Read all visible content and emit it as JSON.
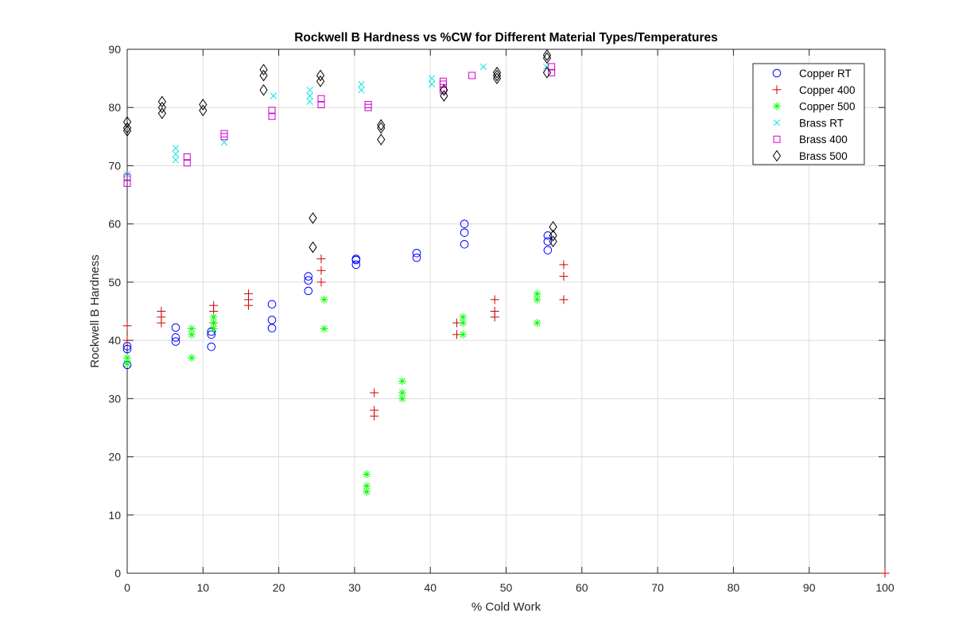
{
  "chart_data": {
    "type": "scatter",
    "title": "Rockwell B Hardness vs %CW for Different Material Types/Temperatures",
    "xlabel": "% Cold Work",
    "ylabel": "Rockwell B Hardness",
    "xlim": [
      0,
      100
    ],
    "ylim": [
      0,
      90
    ],
    "xticks": [
      0,
      10,
      20,
      30,
      40,
      50,
      60,
      70,
      80,
      90,
      100
    ],
    "yticks": [
      0,
      10,
      20,
      30,
      40,
      50,
      60,
      70,
      80,
      90
    ],
    "grid": true,
    "legend_position": "top-right",
    "series": [
      {
        "name": "Copper RT",
        "marker": "circle",
        "color": "#0000ff",
        "points": [
          [
            0,
            35.8
          ],
          [
            0,
            38.5
          ],
          [
            0,
            39
          ],
          [
            6.4,
            39.8
          ],
          [
            6.4,
            40.5
          ],
          [
            6.4,
            42.2
          ],
          [
            11.1,
            38.9
          ],
          [
            11.1,
            41
          ],
          [
            11.1,
            41.5
          ],
          [
            19.1,
            42.1
          ],
          [
            19.1,
            43.5
          ],
          [
            19.1,
            46.2
          ],
          [
            23.9,
            48.5
          ],
          [
            23.9,
            50.3
          ],
          [
            23.9,
            51
          ],
          [
            30.2,
            53
          ],
          [
            30.2,
            53.8
          ],
          [
            30.2,
            54
          ],
          [
            38.2,
            54.2
          ],
          [
            38.2,
            55
          ],
          [
            44.5,
            56.5
          ],
          [
            44.5,
            58.5
          ],
          [
            44.5,
            60
          ],
          [
            55.5,
            55.5
          ],
          [
            55.5,
            57
          ],
          [
            55.5,
            58
          ]
        ]
      },
      {
        "name": "Copper 400",
        "marker": "plus",
        "color": "#cc0000",
        "points": [
          [
            0,
            40
          ],
          [
            0,
            42.5
          ],
          [
            4.5,
            43
          ],
          [
            4.5,
            44
          ],
          [
            4.5,
            45
          ],
          [
            11.4,
            43
          ],
          [
            11.4,
            45
          ],
          [
            11.4,
            46
          ],
          [
            16,
            46
          ],
          [
            16,
            47
          ],
          [
            16,
            48
          ],
          [
            25.6,
            50
          ],
          [
            25.6,
            52
          ],
          [
            25.6,
            54
          ],
          [
            32.6,
            27
          ],
          [
            32.6,
            28
          ],
          [
            32.6,
            31
          ],
          [
            43.5,
            41
          ],
          [
            43.5,
            43
          ],
          [
            48.5,
            44
          ],
          [
            48.5,
            45
          ],
          [
            48.5,
            47
          ],
          [
            57.6,
            47
          ],
          [
            57.6,
            51
          ],
          [
            57.6,
            53
          ],
          [
            100,
            0
          ]
        ]
      },
      {
        "name": "Copper 500",
        "marker": "asterisk",
        "color": "#00ff00",
        "points": [
          [
            0,
            36
          ],
          [
            0,
            37
          ],
          [
            8.5,
            37
          ],
          [
            8.5,
            41
          ],
          [
            8.5,
            42
          ],
          [
            11.4,
            42
          ],
          [
            11.4,
            43
          ],
          [
            11.4,
            44
          ],
          [
            26,
            42
          ],
          [
            26,
            47
          ],
          [
            31.6,
            14
          ],
          [
            31.6,
            15
          ],
          [
            31.6,
            17
          ],
          [
            36.3,
            30
          ],
          [
            36.3,
            31
          ],
          [
            36.3,
            33
          ],
          [
            44.3,
            41
          ],
          [
            44.3,
            43
          ],
          [
            44.3,
            44
          ],
          [
            54.1,
            43
          ],
          [
            54.1,
            47
          ],
          [
            54.1,
            48
          ]
        ]
      },
      {
        "name": "Brass RT",
        "marker": "cross",
        "color": "#00e5e5",
        "points": [
          [
            0,
            68.5
          ],
          [
            6.4,
            71
          ],
          [
            6.4,
            72
          ],
          [
            6.4,
            73
          ],
          [
            12.8,
            74
          ],
          [
            19.3,
            82
          ],
          [
            24.1,
            81
          ],
          [
            24.1,
            82
          ],
          [
            24.1,
            83
          ],
          [
            30.9,
            83
          ],
          [
            30.9,
            84
          ],
          [
            40.2,
            84
          ],
          [
            40.2,
            85
          ],
          [
            47,
            87
          ],
          [
            55.3,
            87
          ]
        ]
      },
      {
        "name": "Brass 400",
        "marker": "square",
        "color": "#cc00cc",
        "points": [
          [
            0,
            67
          ],
          [
            0,
            68
          ],
          [
            7.9,
            70.5
          ],
          [
            7.9,
            71.5
          ],
          [
            12.8,
            75
          ],
          [
            12.8,
            75.5
          ],
          [
            19.1,
            78.5
          ],
          [
            19.1,
            79.5
          ],
          [
            25.6,
            80.5
          ],
          [
            25.6,
            81.5
          ],
          [
            31.8,
            80
          ],
          [
            31.8,
            80.5
          ],
          [
            41.7,
            83
          ],
          [
            41.7,
            84
          ],
          [
            41.7,
            84.5
          ],
          [
            45.5,
            85.5
          ],
          [
            56,
            86
          ],
          [
            56,
            87
          ]
        ]
      },
      {
        "name": "Brass 500",
        "marker": "diamond",
        "color": "#000000",
        "points": [
          [
            0,
            76
          ],
          [
            0,
            76.5
          ],
          [
            0,
            77.5
          ],
          [
            4.6,
            79
          ],
          [
            4.6,
            80
          ],
          [
            4.6,
            81
          ],
          [
            10,
            79.5
          ],
          [
            10,
            80.5
          ],
          [
            18,
            83
          ],
          [
            18,
            85.5
          ],
          [
            18,
            86.5
          ],
          [
            24.5,
            56
          ],
          [
            24.5,
            61
          ],
          [
            25.5,
            84.5
          ],
          [
            25.5,
            85.5
          ],
          [
            33.5,
            74.5
          ],
          [
            33.5,
            76.5
          ],
          [
            33.5,
            77
          ],
          [
            41.8,
            82
          ],
          [
            41.8,
            83
          ],
          [
            48.8,
            85
          ],
          [
            48.8,
            85.5
          ],
          [
            48.8,
            86
          ],
          [
            55.4,
            86
          ],
          [
            55.4,
            88.5
          ],
          [
            55.4,
            89
          ],
          [
            56.2,
            57
          ],
          [
            56.2,
            58
          ],
          [
            56.2,
            59.5
          ]
        ]
      }
    ]
  }
}
